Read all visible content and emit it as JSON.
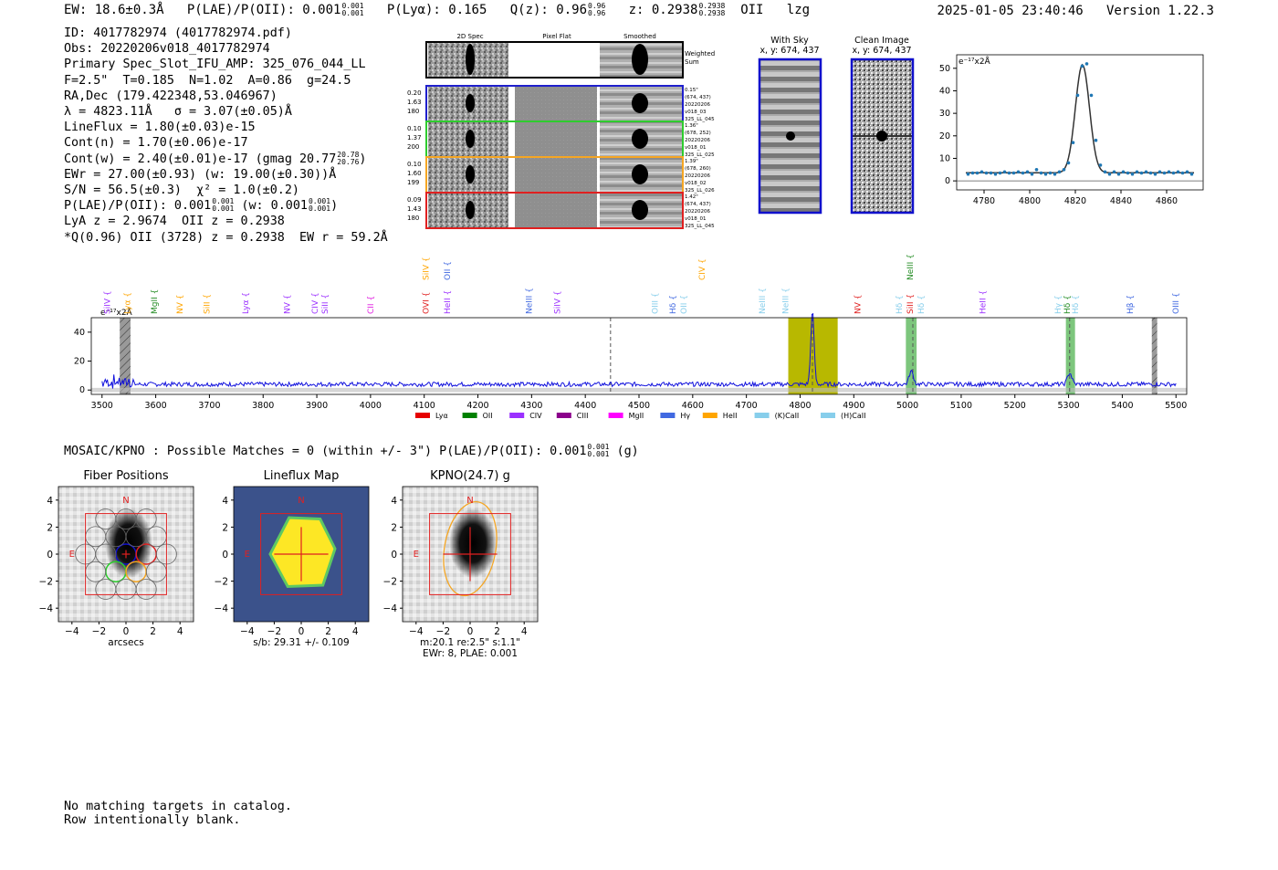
{
  "header": {
    "ew": "EW: 18.6±0.3Å",
    "plae_label": "P(LAE)/P(OII): 0.001",
    "plae_hi": "0.001",
    "plae_lo": "0.001",
    "plya": "P(Lyα): 0.165",
    "qz_label": "Q(z): 0.96",
    "qz_hi": "0.96",
    "qz_lo": "0.96",
    "z_label": "z: 0.2938",
    "z_hi": "0.2938",
    "z_lo": "0.2938",
    "z_tail": "OII   lzg",
    "timestamp": "2025-01-05 23:40:46",
    "version": "Version 1.22.3"
  },
  "info": {
    "id": "ID: 4017782974 (4017782974.pdf)",
    "obs": "Obs: 20220206v018_4017782974",
    "primary": "Primary Spec_Slot_IFU_AMP: 325_076_044_LL",
    "params": "F=2.5\"  T=0.185  N=1.02  A=0.86  g=24.5",
    "radec": "RA,Dec (179.422348,53.046967)",
    "lambda": "λ = 4823.11Å   σ = 3.07(±0.05)Å",
    "lineflux": "LineFlux = 1.80(±0.03)e-15",
    "contn": "Cont(n) = 1.70(±0.06)e-17",
    "contw": "Cont(w) = 2.40(±0.01)e-17 (gmag 20.77",
    "contw_hi": "20.78",
    "contw_lo": "20.76",
    "contw_tail": ")",
    "ewr": "EWr = 27.00(±0.93) (w: 19.00(±0.30))Å",
    "sn": "S/N = 56.5(±0.3)  χ² = 1.0(±0.2)",
    "plae": "P(LAE)/P(OII): 0.001",
    "plae_hi": "0.001",
    "plae_lo": "0.001",
    "plae_w": "(w: 0.001",
    "plae_w_hi": "0.001",
    "plae_w_lo": "0.001",
    "plae_w_tail": ")",
    "lya": "LyA z = 2.9674  OII z = 0.2938",
    "q": "*Q(0.96) OII (3728) z = 0.2938  EW r = 59.2Å"
  },
  "spec2d": {
    "col_headers": [
      "2D Spec",
      "Pixel Flat",
      "Smoothed"
    ],
    "weighted_sum": [
      "Weighted",
      "Sum"
    ],
    "rows": [
      {
        "left": [
          "0.20",
          "1.63",
          "180"
        ],
        "right": [
          "0.15\"",
          "(674, 437)",
          "20220206",
          "v018_03",
          "325_LL_045"
        ],
        "color": "#1f1fcc"
      },
      {
        "left": [
          "0.10",
          "1.37",
          "200"
        ],
        "right": [
          "1.36\"",
          "(678, 252)",
          "20220206",
          "v018_01",
          "325_LL_025"
        ],
        "color": "#2ecc2e"
      },
      {
        "left": [
          "0.10",
          "1.60",
          "199"
        ],
        "right": [
          "1.39\"",
          "(678, 260)",
          "20220206",
          "v018_02",
          "325_LL_026"
        ],
        "color": "#f5a623"
      },
      {
        "left": [
          "0.09",
          "1.43",
          "180"
        ],
        "right": [
          "1.42\"",
          "(674, 437)",
          "20220206",
          "v018_01",
          "325_LL_045"
        ],
        "color": "#e02020"
      }
    ]
  },
  "cutouts": {
    "with_sky": [
      "With Sky",
      "x, y: 674, 437"
    ],
    "clean": [
      "Clean Image",
      "x, y: 674, 437"
    ]
  },
  "colors": {
    "spectrum": "#1010dd",
    "fit": "#333333",
    "points": "#1f77b4",
    "olive": "#b8b800",
    "green_band": "#5cb85c",
    "red": "#e02020"
  },
  "chart_data": [
    {
      "type": "scatter",
      "title": "",
      "ylabel": "e⁻¹⁷x2Å",
      "xlim": [
        4768,
        4876
      ],
      "ylim": [
        -4,
        56
      ],
      "xticks": [
        4780,
        4800,
        4820,
        4840,
        4860
      ],
      "xtick_labels": [
        "4780",
        "4800",
        "4820",
        "4840",
        "4860"
      ],
      "yticks": [
        0,
        10,
        20,
        30,
        40,
        50
      ],
      "ytick_labels": [
        "0",
        "10",
        "20",
        "30",
        "40",
        "50"
      ],
      "x": [
        4773,
        4775,
        4777,
        4779,
        4781,
        4783,
        4785,
        4787,
        4789,
        4791,
        4793,
        4795,
        4797,
        4799,
        4801,
        4803,
        4805,
        4807,
        4809,
        4811,
        4813,
        4815,
        4817,
        4819,
        4821,
        4823,
        4825,
        4827,
        4829,
        4831,
        4833,
        4835,
        4837,
        4839,
        4841,
        4843,
        4845,
        4847,
        4849,
        4851,
        4853,
        4855,
        4857,
        4859,
        4861,
        4863,
        4865,
        4867,
        4869,
        4871
      ],
      "y": [
        3,
        3.5,
        3.5,
        4,
        3.5,
        3.5,
        3,
        3.5,
        4,
        3.5,
        3.5,
        4,
        3.5,
        4,
        3,
        5,
        3.5,
        3,
        3.5,
        3,
        4,
        5,
        8,
        17,
        38,
        51,
        52,
        38,
        18,
        7,
        4,
        3,
        4,
        3,
        4,
        3.5,
        3,
        4,
        3.5,
        4,
        3.5,
        3,
        4,
        3.5,
        4,
        3.5,
        4,
        3.5,
        4,
        3
      ]
    },
    {
      "type": "line",
      "title": "",
      "ylabel": "e⁻¹⁷x2Å",
      "xlim": [
        3480,
        5520
      ],
      "ylim": [
        -3,
        50
      ],
      "xticks": [
        3500,
        3600,
        3700,
        3800,
        3900,
        4000,
        4100,
        4200,
        4300,
        4400,
        4500,
        4600,
        4700,
        4800,
        4900,
        5000,
        5100,
        5200,
        5300,
        5400,
        5500
      ],
      "xtick_labels": [
        "3500",
        "3600",
        "3700",
        "3800",
        "3900",
        "4000",
        "4100",
        "4200",
        "4300",
        "4400",
        "4500",
        "4600",
        "4700",
        "4800",
        "4900",
        "5000",
        "5100",
        "5200",
        "5300",
        "5400",
        "5500"
      ],
      "yticks": [
        0,
        20,
        40
      ],
      "ytick_labels": [
        "0",
        "20",
        "40"
      ],
      "continuum": 4,
      "line_center": 4823,
      "line_peak": 50,
      "emission_bumps": [
        {
          "x": 5007,
          "peak": 9
        },
        {
          "x": 5302,
          "peak": 8
        }
      ],
      "shaded_regions": [
        {
          "from": 4778,
          "to": 4870,
          "kind": "olive"
        },
        {
          "from": 4997,
          "to": 5017,
          "kind": "green"
        },
        {
          "from": 5295,
          "to": 5312,
          "kind": "green"
        },
        {
          "from": 3533,
          "to": 3553,
          "kind": "gray-hatch"
        },
        {
          "from": 5455,
          "to": 5465,
          "kind": "gray-hatch"
        }
      ],
      "dashed_lines": [
        4447,
        4823,
        5010,
        5302
      ],
      "line_labels": [
        {
          "text": "SiIV",
          "x": 3515,
          "color": "#9b30ff",
          "row": 1
        },
        {
          "text": "Lyα",
          "x": 3552,
          "color": "#ffa500",
          "row": 1
        },
        {
          "text": "MgII",
          "x": 3602,
          "color": "#228b22",
          "row": 1
        },
        {
          "text": "NV",
          "x": 3650,
          "color": "#ffa500",
          "row": 1
        },
        {
          "text": "SiII",
          "x": 3700,
          "color": "#ffa500",
          "row": 1
        },
        {
          "text": "Lyα",
          "x": 3772,
          "color": "#9b30ff",
          "row": 1
        },
        {
          "text": "NV",
          "x": 3850,
          "color": "#9b30ff",
          "row": 1
        },
        {
          "text": "CIV",
          "x": 3902,
          "color": "#9b30ff",
          "row": 1
        },
        {
          "text": "SiII",
          "x": 3920,
          "color": "#9b30ff",
          "row": 1
        },
        {
          "text": "CII",
          "x": 4005,
          "color": "#e020e0",
          "row": 1
        },
        {
          "text": "OVI",
          "x": 4108,
          "color": "#e02020",
          "row": 1
        },
        {
          "text": "HeII",
          "x": 4148,
          "color": "#9b30ff",
          "row": 1
        },
        {
          "text": "NeIII",
          "x": 4300,
          "color": "#4169e1",
          "row": 1
        },
        {
          "text": "SiIV",
          "x": 4353,
          "color": "#9b30ff",
          "row": 1
        },
        {
          "text": "SiIV",
          "x": 4108,
          "color": "#ffa500",
          "row": 0
        },
        {
          "text": "OII",
          "x": 4148,
          "color": "#4169e1",
          "row": 0
        },
        {
          "text": "OIII",
          "x": 4535,
          "color": "#87ceeb",
          "row": 1
        },
        {
          "text": "Hδ",
          "x": 4568,
          "color": "#4169e1",
          "row": 1
        },
        {
          "text": "OII",
          "x": 4588,
          "color": "#87ceeb",
          "row": 1
        },
        {
          "text": "CIV",
          "x": 4622,
          "color": "#ffa500",
          "row": 0
        },
        {
          "text": "NeIII",
          "x": 4735,
          "color": "#87ceeb",
          "row": 1
        },
        {
          "text": "NeIII",
          "x": 4778,
          "color": "#87ceeb",
          "row": 1
        },
        {
          "text": "NV",
          "x": 4912,
          "color": "#e02020",
          "row": 1
        },
        {
          "text": "Hδ",
          "x": 4990,
          "color": "#87ceeb",
          "row": 1
        },
        {
          "text": "SiII",
          "x": 5010,
          "color": "#e02020",
          "row": 1
        },
        {
          "text": "Hδ",
          "x": 5030,
          "color": "#87ceeb",
          "row": 1
        },
        {
          "text": "NeIII",
          "x": 5010,
          "color": "#228b22",
          "row": 0
        },
        {
          "text": "HeII",
          "x": 5145,
          "color": "#9b30ff",
          "row": 1
        },
        {
          "text": "Hγ",
          "x": 5285,
          "color": "#87ceeb",
          "row": 1
        },
        {
          "text": "Hδ",
          "x": 5302,
          "color": "#228b22",
          "row": 1
        },
        {
          "text": "Hδ",
          "x": 5318,
          "color": "#87ceeb",
          "row": 1
        },
        {
          "text": "Hβ",
          "x": 5420,
          "color": "#4169e1",
          "row": 1
        },
        {
          "text": "OIII",
          "x": 5505,
          "color": "#4169e1",
          "row": 1
        }
      ],
      "legend": [
        {
          "label": "Lyα",
          "color": "#e60000"
        },
        {
          "label": "OII",
          "color": "#008000"
        },
        {
          "label": "CIV",
          "color": "#9b30ff"
        },
        {
          "label": "CIII",
          "color": "#8b008b"
        },
        {
          "label": "MgII",
          "color": "#ff00ff"
        },
        {
          "label": "Hγ",
          "color": "#4169e1"
        },
        {
          "label": "HeII",
          "color": "#ffa500"
        },
        {
          "label": "(K)CaII",
          "color": "#87ceeb"
        },
        {
          "label": "(H)CaII",
          "color": "#87ceeb"
        }
      ]
    }
  ],
  "mosaic": {
    "line": "MOSAIC/KPNO : Possible Matches = 0 (within +/- 3\")  P(LAE)/P(OII): 0.001",
    "hi": "0.001",
    "lo": "0.001",
    "tail": "(g)"
  },
  "thumbs": {
    "fiber": {
      "title": "Fiber Positions",
      "xlabel": "arcsecs"
    },
    "lineflux": {
      "title": "Lineflux Map",
      "xlabel": "s/b: 29.31 +/- 0.109"
    },
    "kpno": {
      "title": "KPNO(24.7) g",
      "xlabel1": "m:20.1  re:2.5\"  s:1.1\"",
      "xlabel2": "EWr: 8, PLAE: 0.001"
    },
    "ticks": [
      "4",
      "2",
      "0",
      "−2",
      "−4"
    ],
    "xticks": [
      "−4",
      "−2",
      "0",
      "2",
      "4"
    ],
    "north": "N",
    "east": "E"
  },
  "footer": [
    "No matching targets in catalog.",
    "Row intentionally blank."
  ]
}
